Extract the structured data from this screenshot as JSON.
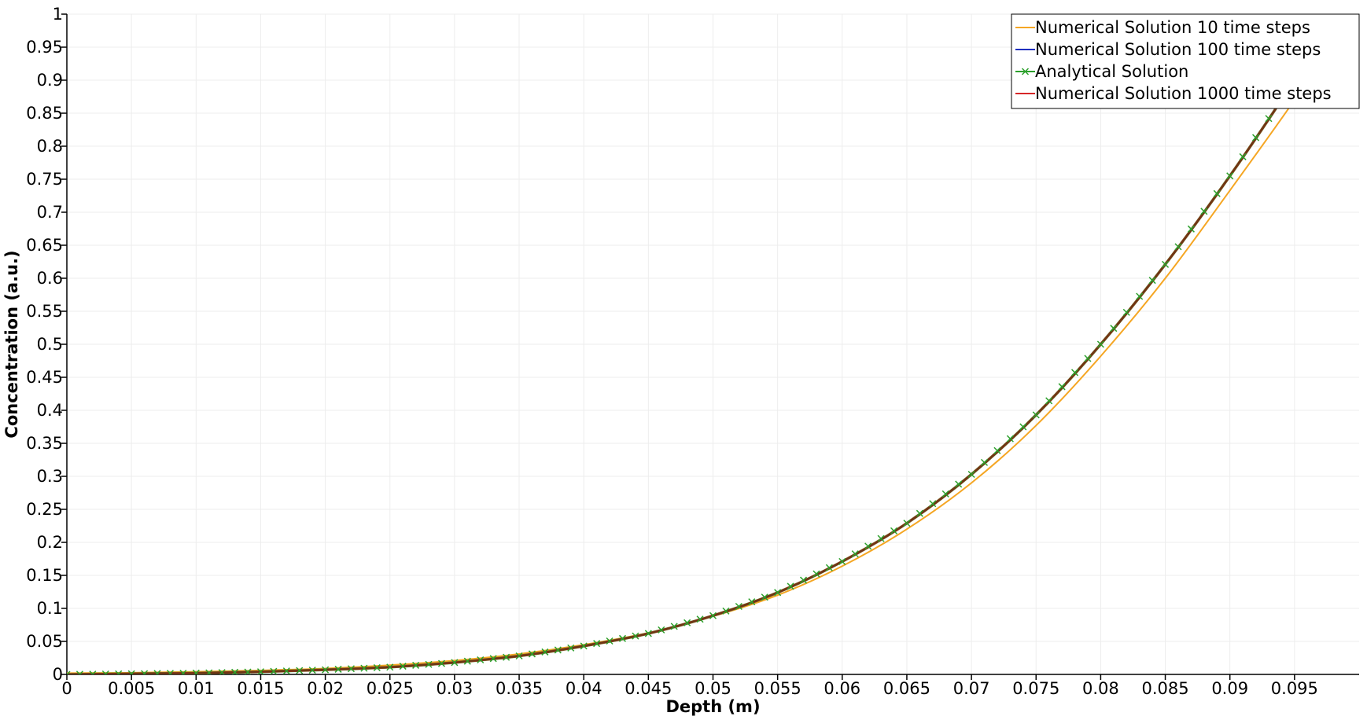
{
  "chart_data": {
    "type": "line",
    "xlabel": "Depth (m)",
    "ylabel": "Concentration (a.u.)",
    "xlim": [
      0,
      0.1
    ],
    "ylim": [
      0,
      1
    ],
    "x_ticks": [
      "0",
      "0.005",
      "0.01",
      "0.015",
      "0.02",
      "0.025",
      "0.03",
      "0.035",
      "0.04",
      "0.045",
      "0.05",
      "0.055",
      "0.06",
      "0.065",
      "0.07",
      "0.075",
      "0.08",
      "0.085",
      "0.09",
      "0.095"
    ],
    "y_ticks": [
      "0",
      "0.05",
      "0.1",
      "0.15",
      "0.2",
      "0.25",
      "0.3",
      "0.35",
      "0.4",
      "0.45",
      "0.5",
      "0.55",
      "0.6",
      "0.65",
      "0.7",
      "0.75",
      "0.8",
      "0.85",
      "0.9",
      "0.95",
      "1"
    ],
    "grid": true,
    "legend_position": "top-right",
    "x": [
      0,
      0.005,
      0.01,
      0.015,
      0.02,
      0.025,
      0.03,
      0.035,
      0.04,
      0.045,
      0.05,
      0.055,
      0.06,
      0.065,
      0.07,
      0.075,
      0.08,
      0.085,
      0.09,
      0.095
    ],
    "series": [
      {
        "name": "Numerical Solution 10 time steps",
        "color": "#f5a623",
        "marker": "none",
        "values": [
          0.002,
          0.0025,
          0.004,
          0.006,
          0.009,
          0.014,
          0.021,
          0.031,
          0.045,
          0.063,
          0.088,
          0.12,
          0.164,
          0.22,
          0.29,
          0.377,
          0.482,
          0.6,
          0.733,
          0.87
        ]
      },
      {
        "name": "Numerical Solution 100 time steps",
        "color": "#1f2fbf",
        "marker": "none",
        "values": [
          0.0,
          0.001,
          0.002,
          0.004,
          0.007,
          0.011,
          0.018,
          0.028,
          0.043,
          0.062,
          0.089,
          0.124,
          0.171,
          0.229,
          0.303,
          0.393,
          0.5,
          0.621,
          0.755,
          0.9
        ]
      },
      {
        "name": "Analytical Solution",
        "color": "#2ca02c",
        "marker": "x",
        "values": [
          0.0,
          0.001,
          0.002,
          0.004,
          0.007,
          0.011,
          0.018,
          0.028,
          0.043,
          0.062,
          0.089,
          0.124,
          0.171,
          0.229,
          0.303,
          0.393,
          0.5,
          0.621,
          0.755,
          0.9
        ]
      },
      {
        "name": "Numerical Solution 1000 time steps",
        "color": "#d62728",
        "marker": "none",
        "values": [
          0.0,
          0.001,
          0.002,
          0.004,
          0.007,
          0.011,
          0.018,
          0.028,
          0.043,
          0.062,
          0.089,
          0.124,
          0.171,
          0.229,
          0.303,
          0.393,
          0.5,
          0.621,
          0.755,
          0.9
        ]
      }
    ]
  }
}
